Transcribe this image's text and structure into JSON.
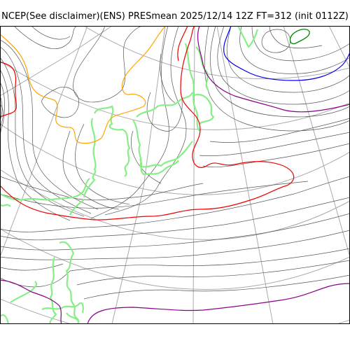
{
  "header": {
    "title": "NCEP(See disclaimer)(ENS) PRESmean 2025/12/14 12Z FT=312 (init 0112Z)"
  },
  "map": {
    "colors": {
      "grid": "#aaaaaa",
      "isobar": "#555555",
      "coast": "#88ee88",
      "orange": "#ffa500",
      "red": "#ee0000",
      "purple": "#880088",
      "blue": "#0000ee",
      "green": "#008800",
      "frame": "#000000"
    }
  }
}
